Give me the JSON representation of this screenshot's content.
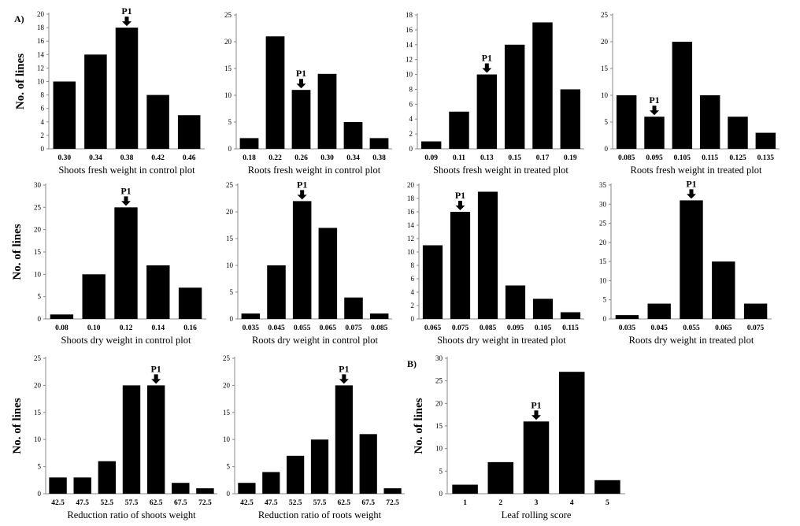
{
  "figure": {
    "panel_labels": [
      "A)",
      "B)"
    ],
    "y_label": "No. of lines",
    "marker_label": "P1"
  },
  "chart_data": [
    {
      "type": "bar",
      "panel": "A)",
      "xlabel": "Shoots fresh weight in control plot",
      "ylabel": "No. of lines",
      "categories": [
        "0.30",
        "0.34",
        "0.38",
        "0.42",
        "0.46"
      ],
      "values": [
        10,
        14,
        18,
        8,
        5
      ],
      "ylim": [
        0,
        20
      ],
      "yticks": [
        0,
        2,
        4,
        6,
        8,
        10,
        12,
        14,
        16,
        18,
        20
      ],
      "marker": {
        "label": "P1",
        "category": "0.38"
      }
    },
    {
      "type": "bar",
      "xlabel": "Roots fresh weight in control plot",
      "ylabel": "",
      "categories": [
        "0.18",
        "0.22",
        "0.26",
        "0.30",
        "0.34",
        "0.38"
      ],
      "values": [
        2,
        21,
        11,
        14,
        5,
        2
      ],
      "ylim": [
        0,
        25
      ],
      "yticks": [
        0,
        5,
        10,
        15,
        20,
        25
      ],
      "marker": {
        "label": "P1",
        "category": "0.26"
      }
    },
    {
      "type": "bar",
      "xlabel": "Shoots fresh weight in treated plot",
      "ylabel": "",
      "categories": [
        "0.09",
        "0.11",
        "0.13",
        "0.15",
        "0.17",
        "0.19"
      ],
      "values": [
        1,
        5,
        10,
        14,
        17,
        8
      ],
      "ylim": [
        0,
        18
      ],
      "yticks": [
        0,
        2,
        4,
        6,
        8,
        10,
        12,
        14,
        16,
        18
      ],
      "marker": {
        "label": "P1",
        "category": "0.13"
      }
    },
    {
      "type": "bar",
      "xlabel": "Roots fresh weight in treated plot",
      "ylabel": "",
      "categories": [
        "0.085",
        "0.095",
        "0.105",
        "0.115",
        "0.125",
        "0.135"
      ],
      "values": [
        10,
        6,
        20,
        10,
        6,
        3
      ],
      "ylim": [
        0,
        25
      ],
      "yticks": [
        0,
        5,
        10,
        15,
        20,
        25
      ],
      "marker": {
        "label": "P1",
        "category": "0.095"
      }
    },
    {
      "type": "bar",
      "xlabel": "Shoots dry weight in control plot",
      "ylabel": "No. of lines",
      "categories": [
        "0.08",
        "0.10",
        "0.12",
        "0.14",
        "0.16"
      ],
      "values": [
        1,
        10,
        25,
        12,
        7
      ],
      "ylim": [
        0,
        30
      ],
      "yticks": [
        0,
        5,
        10,
        15,
        20,
        25,
        30
      ],
      "marker": {
        "label": "P1",
        "category": "0.12"
      }
    },
    {
      "type": "bar",
      "xlabel": "Roots dry weight in control plot",
      "ylabel": "",
      "categories": [
        "0.035",
        "0.045",
        "0.055",
        "0.065",
        "0.075",
        "0.085"
      ],
      "values": [
        1,
        10,
        22,
        17,
        4,
        1
      ],
      "ylim": [
        0,
        25
      ],
      "yticks": [
        0,
        5,
        10,
        15,
        20,
        25
      ],
      "marker": {
        "label": "P1",
        "category": "0.055"
      }
    },
    {
      "type": "bar",
      "xlabel": "Shoots dry weight in treated plot",
      "ylabel": "",
      "categories": [
        "0.065",
        "0.075",
        "0.085",
        "0.095",
        "0.105",
        "0.115"
      ],
      "values": [
        11,
        16,
        19,
        5,
        3,
        1
      ],
      "ylim": [
        0,
        20
      ],
      "yticks": [
        0,
        2,
        4,
        6,
        8,
        10,
        12,
        14,
        16,
        18,
        20
      ],
      "marker": {
        "label": "P1",
        "category": "0.075"
      }
    },
    {
      "type": "bar",
      "xlabel": "Roots dry weight in treated plot",
      "ylabel": "",
      "categories": [
        "0.035",
        "0.045",
        "0.055",
        "0.065",
        "0.075"
      ],
      "values": [
        1,
        4,
        31,
        15,
        4
      ],
      "ylim": [
        0,
        35
      ],
      "yticks": [
        0,
        5,
        10,
        15,
        20,
        25,
        30,
        35
      ],
      "marker": {
        "label": "P1",
        "category": "0.055"
      }
    },
    {
      "type": "bar",
      "xlabel": "Reduction ratio of shoots weight",
      "ylabel": "No. of lines",
      "categories": [
        "42.5",
        "47.5",
        "52.5",
        "57.5",
        "62.5",
        "67.5",
        "72.5"
      ],
      "values": [
        3,
        3,
        6,
        20,
        20,
        2,
        1
      ],
      "ylim": [
        0,
        25
      ],
      "yticks": [
        0,
        5,
        10,
        15,
        20,
        25
      ],
      "marker": {
        "label": "P1",
        "category": "62.5"
      }
    },
    {
      "type": "bar",
      "xlabel": "Reduction ratio of roots weight",
      "ylabel": "",
      "categories": [
        "42.5",
        "47.5",
        "52.5",
        "57.5",
        "62.5",
        "67.5",
        "72.5"
      ],
      "values": [
        2,
        4,
        7,
        10,
        20,
        11,
        1
      ],
      "ylim": [
        0,
        25
      ],
      "yticks": [
        0,
        5,
        10,
        15,
        20,
        25
      ],
      "marker": {
        "label": "P1",
        "category": "62.5"
      }
    },
    {
      "type": "bar",
      "panel": "B)",
      "xlabel": "Leaf rolling score",
      "ylabel": "No. of lines",
      "categories": [
        "1",
        "2",
        "3",
        "4",
        "5"
      ],
      "values": [
        2,
        7,
        16,
        27,
        3
      ],
      "ylim": [
        0,
        30
      ],
      "yticks": [
        0,
        5,
        10,
        15,
        20,
        25,
        30
      ],
      "marker": {
        "label": "P1",
        "category": "3"
      }
    }
  ]
}
